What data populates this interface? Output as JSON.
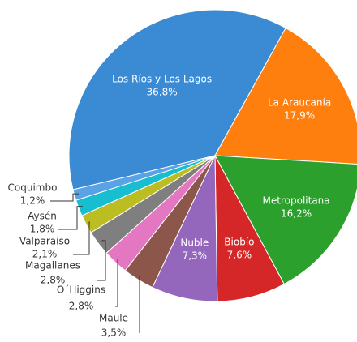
{
  "chart_data": {
    "type": "pie",
    "categories": [
      "Los Ríos y Los Lagos",
      "La Araucanía",
      "Metropolitana",
      "Biobío",
      "Ñuble",
      "Maule",
      "O´Higgins",
      "Magallanes",
      "Valparaiso",
      "Aysén",
      "Coquimbo"
    ],
    "values": [
      36.8,
      17.9,
      16.2,
      7.6,
      7.3,
      3.5,
      2.8,
      2.8,
      2.1,
      1.8,
      1.2
    ],
    "value_labels": [
      "36,8%",
      "17,9%",
      "16,2%",
      "7,6%",
      "7,3%",
      "3,5%",
      "2,8%",
      "2,8%",
      "2,1%",
      "1,8%",
      "1,2%"
    ],
    "colors": [
      "#3a8ad4",
      "#ff7f0e",
      "#2ca02c",
      "#d62728",
      "#9467bd",
      "#8c564b",
      "#e377c2",
      "#7f7f7f",
      "#bcbd22",
      "#17becf",
      "#5aa2e6"
    ]
  }
}
